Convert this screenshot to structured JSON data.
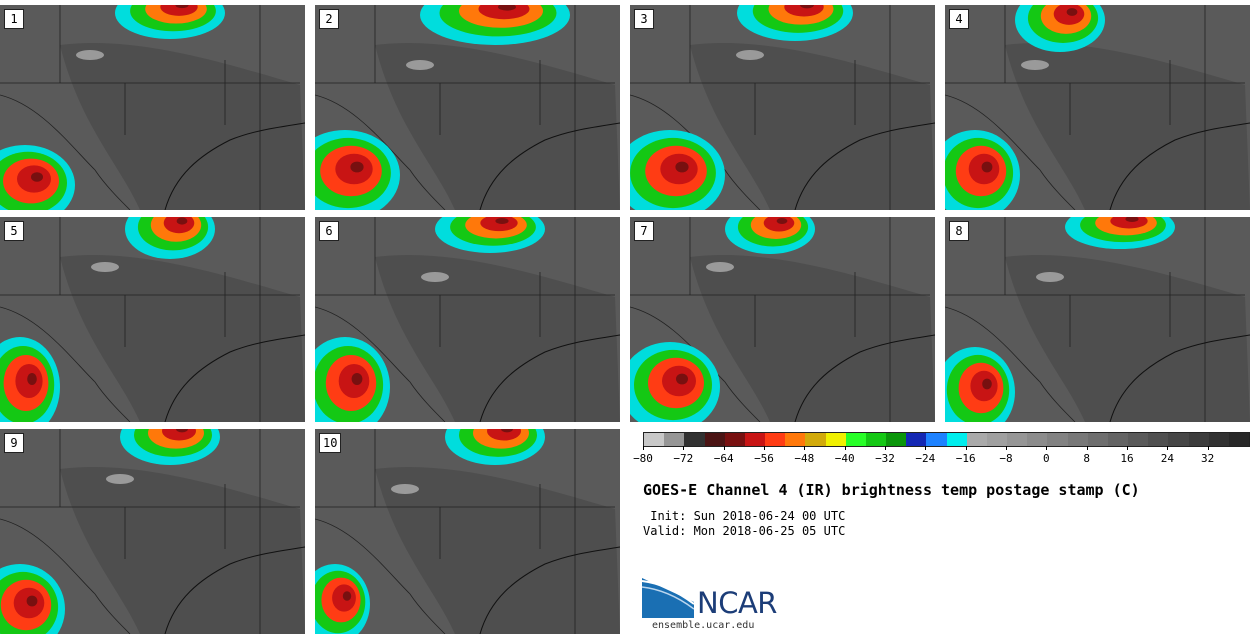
{
  "panels": [
    {
      "label": "1"
    },
    {
      "label": "2"
    },
    {
      "label": "3"
    },
    {
      "label": "4"
    },
    {
      "label": "5"
    },
    {
      "label": "6"
    },
    {
      "label": "7"
    },
    {
      "label": "8"
    },
    {
      "label": "9"
    },
    {
      "label": "10"
    }
  ],
  "colorbar": {
    "colors": [
      "#c8c8c8",
      "#969696",
      "#323232",
      "#4b1414",
      "#781010",
      "#c81414",
      "#ff3c14",
      "#ff780a",
      "#d2aa0a",
      "#f0f000",
      "#28ff28",
      "#14c814",
      "#0a960a",
      "#1428b4",
      "#1e82ff",
      "#00eeee",
      "#aaaaaa",
      "#a0a0a0",
      "#969696",
      "#8c8c8c",
      "#828282",
      "#787878",
      "#6e6e6e",
      "#646464",
      "#5a5a5a",
      "#505050",
      "#464646",
      "#3c3c3c",
      "#323232",
      "#282828"
    ],
    "ticks": [
      "-80",
      "-72",
      "-64",
      "-56",
      "-48",
      "-40",
      "-32",
      "-24",
      "-16",
      "-8",
      "0",
      "8",
      "16",
      "24",
      "32"
    ],
    "min": -80,
    "max": 40
  },
  "title": "GOES-E Channel 4 (IR) brightness temp postage stamp (C)",
  "init": " Init: Sun 2018-06-24 00 UTC",
  "valid": "Valid: Mon 2018-06-25 05 UTC",
  "logo": {
    "text": "NCAR",
    "site": "ensemble.ucar.edu"
  }
}
